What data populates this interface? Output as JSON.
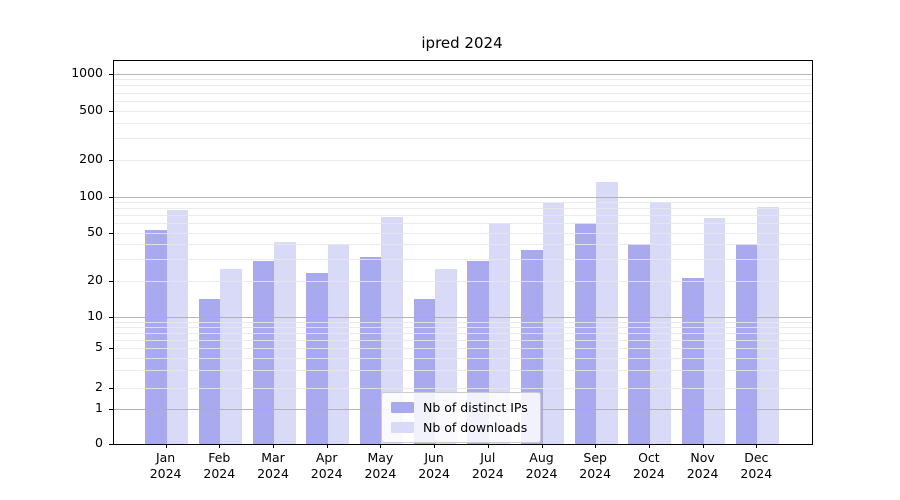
{
  "title": "ipred 2024",
  "chart_data": {
    "type": "bar",
    "title": "ipred 2024",
    "xlabel": "",
    "ylabel": "",
    "scale": "symlog",
    "grid": true,
    "legend_position": "lower center",
    "categories": [
      "Jan",
      "Feb",
      "Mar",
      "Apr",
      "May",
      "Jun",
      "Jul",
      "Aug",
      "Sep",
      "Oct",
      "Nov",
      "Dec"
    ],
    "year": "2024",
    "series": [
      {
        "name": "Nb of distinct IPs",
        "color": "#a9a9f0",
        "values": [
          53,
          14,
          29,
          23,
          31,
          14,
          29,
          36,
          60,
          40,
          21,
          40
        ]
      },
      {
        "name": "Nb of downloads",
        "color": "#d9d9f8",
        "values": [
          77,
          25,
          42,
          40,
          68,
          25,
          60,
          88,
          130,
          90,
          66,
          82
        ]
      }
    ],
    "yticks": [
      0,
      1,
      2,
      5,
      10,
      20,
      50,
      100,
      200,
      500,
      1000
    ],
    "ytick_labels": [
      "0",
      "1",
      "2",
      "5",
      "10",
      "20",
      "50",
      "100",
      "200",
      "500",
      "1000"
    ],
    "ylim": [
      0,
      1260
    ]
  },
  "colors": {
    "background": "#ffffff",
    "bar_distinct_ips": "#a9a9f0",
    "bar_downloads": "#d9d9f8",
    "grid_major": "#adadad",
    "grid_minor": "#e8e8e8",
    "spine": "#000000",
    "text": "#000000",
    "legend_border": "#cccccc"
  }
}
